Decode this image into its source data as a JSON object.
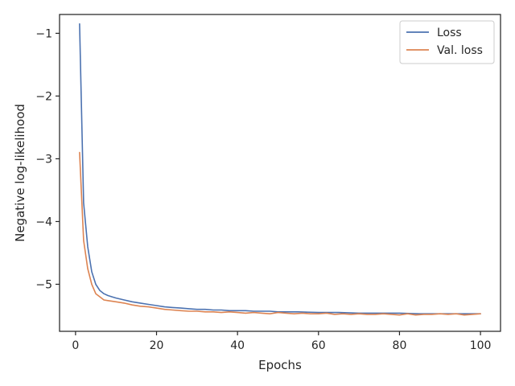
{
  "chart_data": {
    "type": "line",
    "title": "",
    "xlabel": "Epochs",
    "ylabel": "Negative log-likelihood",
    "xlim": [
      -3.95,
      104.95
    ],
    "ylim": [
      -5.75,
      -0.7
    ],
    "x_ticks": [
      0,
      20,
      40,
      60,
      80,
      100
    ],
    "x_tick_labels": [
      "0",
      "20",
      "40",
      "60",
      "80",
      "100"
    ],
    "y_ticks": [
      -1,
      -2,
      -3,
      -4,
      -5
    ],
    "y_tick_labels": [
      "−1",
      "−2",
      "−3",
      "−4",
      "−5"
    ],
    "grid": false,
    "legend_position": "top-right",
    "series": [
      {
        "name": "Loss",
        "color": "#4c72b0",
        "x": [
          1,
          2,
          3,
          4,
          5,
          6,
          7,
          8,
          9,
          10,
          12,
          14,
          16,
          18,
          20,
          22,
          24,
          26,
          28,
          30,
          32,
          34,
          36,
          38,
          40,
          42,
          44,
          46,
          48,
          50,
          55,
          60,
          65,
          70,
          75,
          80,
          85,
          90,
          95,
          100
        ],
        "y": [
          -0.85,
          -3.7,
          -4.4,
          -4.8,
          -5.0,
          -5.1,
          -5.15,
          -5.18,
          -5.2,
          -5.22,
          -5.25,
          -5.28,
          -5.3,
          -5.32,
          -5.34,
          -5.36,
          -5.37,
          -5.38,
          -5.39,
          -5.4,
          -5.4,
          -5.41,
          -5.41,
          -5.42,
          -5.42,
          -5.42,
          -5.43,
          -5.43,
          -5.43,
          -5.44,
          -5.44,
          -5.45,
          -5.45,
          -5.46,
          -5.46,
          -5.46,
          -5.47,
          -5.47,
          -5.47,
          -5.47
        ]
      },
      {
        "name": "Val. loss",
        "color": "#dd8452",
        "x": [
          1,
          2,
          3,
          4,
          5,
          6,
          7,
          8,
          9,
          10,
          12,
          14,
          16,
          18,
          20,
          22,
          24,
          26,
          28,
          30,
          32,
          34,
          36,
          38,
          40,
          42,
          44,
          46,
          48,
          50,
          52,
          54,
          56,
          58,
          60,
          62,
          64,
          66,
          68,
          70,
          72,
          74,
          76,
          78,
          80,
          82,
          84,
          86,
          88,
          90,
          92,
          94,
          96,
          98,
          100
        ],
        "y": [
          -2.9,
          -4.3,
          -4.75,
          -5.0,
          -5.15,
          -5.2,
          -5.25,
          -5.26,
          -5.27,
          -5.28,
          -5.3,
          -5.33,
          -5.35,
          -5.36,
          -5.38,
          -5.4,
          -5.41,
          -5.42,
          -5.43,
          -5.43,
          -5.44,
          -5.44,
          -5.45,
          -5.44,
          -5.45,
          -5.46,
          -5.45,
          -5.46,
          -5.47,
          -5.45,
          -5.46,
          -5.47,
          -5.46,
          -5.47,
          -5.47,
          -5.46,
          -5.48,
          -5.47,
          -5.48,
          -5.47,
          -5.48,
          -5.48,
          -5.47,
          -5.48,
          -5.49,
          -5.47,
          -5.49,
          -5.48,
          -5.48,
          -5.47,
          -5.48,
          -5.47,
          -5.49,
          -5.48,
          -5.47
        ]
      }
    ]
  }
}
